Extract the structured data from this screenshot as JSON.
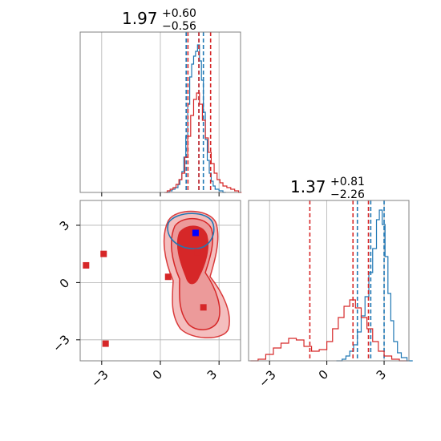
{
  "figure": {
    "type": "corner-plot",
    "colors": {
      "series_a": "#d62728",
      "series_b": "#1f77b4",
      "grid": "#b0b0b0",
      "frame": "#808080"
    }
  },
  "panels": {
    "p1_title": {
      "median": "1.97",
      "upper": "+0.60",
      "lower": "−0.56"
    },
    "p2_title": {
      "median": "1.37",
      "upper": "+0.81",
      "lower": "−2.26"
    }
  },
  "ticks": {
    "x": [
      "−3",
      "0",
      "3"
    ],
    "y": [
      "3",
      "0",
      "−3"
    ]
  },
  "chart_data": [
    {
      "type": "histogram",
      "panel": "marginal parameter 1",
      "xlim": [
        -4.1,
        4.1
      ],
      "grid": true,
      "series": [
        {
          "color": "#1f77b4",
          "quantiles": [
            1.32,
            1.97,
            2.2
          ],
          "bins": [
            [
              0.3,
              0.0
            ],
            [
              0.45,
              0.01
            ],
            [
              0.6,
              0.02
            ],
            [
              0.75,
              0.03
            ],
            [
              0.9,
              0.05
            ],
            [
              1.0,
              0.08
            ],
            [
              1.1,
              0.13
            ],
            [
              1.2,
              0.22
            ],
            [
              1.3,
              0.35
            ],
            [
              1.4,
              0.55
            ],
            [
              1.5,
              0.72
            ],
            [
              1.6,
              0.8
            ],
            [
              1.7,
              0.85
            ],
            [
              1.8,
              0.88
            ],
            [
              1.9,
              0.92
            ],
            [
              2.0,
              0.82
            ],
            [
              2.1,
              0.7
            ],
            [
              2.2,
              0.5
            ],
            [
              2.3,
              0.33
            ],
            [
              2.4,
              0.2
            ],
            [
              2.5,
              0.12
            ],
            [
              2.6,
              0.07
            ],
            [
              2.7,
              0.04
            ],
            [
              2.8,
              0.02
            ],
            [
              3.0,
              0.01
            ],
            [
              3.2,
              0.0
            ]
          ]
        },
        {
          "color": "#d62728",
          "quantiles": [
            1.41,
            1.97,
            2.57
          ],
          "bins": [
            [
              0.2,
              0.0
            ],
            [
              0.35,
              0.01
            ],
            [
              0.5,
              0.02
            ],
            [
              0.65,
              0.03
            ],
            [
              0.8,
              0.05
            ],
            [
              0.95,
              0.08
            ],
            [
              1.1,
              0.12
            ],
            [
              1.25,
              0.22
            ],
            [
              1.4,
              0.35
            ],
            [
              1.55,
              0.48
            ],
            [
              1.7,
              0.58
            ],
            [
              1.85,
              0.62
            ],
            [
              2.0,
              0.55
            ],
            [
              2.15,
              0.45
            ],
            [
              2.3,
              0.34
            ],
            [
              2.45,
              0.25
            ],
            [
              2.6,
              0.18
            ],
            [
              2.75,
              0.12
            ],
            [
              2.9,
              0.08
            ],
            [
              3.05,
              0.06
            ],
            [
              3.2,
              0.04
            ],
            [
              3.4,
              0.03
            ],
            [
              3.6,
              0.02
            ],
            [
              3.8,
              0.01
            ],
            [
              4.0,
              0.0
            ]
          ]
        }
      ]
    },
    {
      "type": "scatter",
      "panel": "joint parameter 1 vs parameter 2",
      "xlim": [
        -4.1,
        4.1
      ],
      "ylim": [
        -4.1,
        4.3
      ],
      "grid": true,
      "markers": [
        {
          "color": "#d62728",
          "shape": "square",
          "points": [
            [
              -3.8,
              0.9
            ],
            [
              -2.9,
              1.5
            ],
            [
              -2.8,
              -3.2
            ],
            [
              0.4,
              0.3
            ],
            [
              1.9,
              1.6
            ],
            [
              2.2,
              -1.3
            ]
          ]
        },
        {
          "color": "#0000ff",
          "shape": "square",
          "points": [
            [
              1.8,
              2.6
            ]
          ]
        }
      ]
    },
    {
      "type": "histogram",
      "panel": "marginal parameter 2",
      "xlim": [
        -4.1,
        4.3
      ],
      "grid": true,
      "series": [
        {
          "color": "#1f77b4",
          "quantiles": [
            1.6,
            2.3,
            3.0
          ],
          "bins": [
            [
              0.5,
              0.0
            ],
            [
              0.8,
              0.01
            ],
            [
              1.0,
              0.03
            ],
            [
              1.2,
              0.06
            ],
            [
              1.4,
              0.1
            ],
            [
              1.6,
              0.18
            ],
            [
              1.8,
              0.28
            ],
            [
              2.0,
              0.4
            ],
            [
              2.2,
              0.55
            ],
            [
              2.4,
              0.7
            ],
            [
              2.6,
              0.88
            ],
            [
              2.75,
              0.94
            ],
            [
              2.9,
              0.85
            ],
            [
              3.05,
              0.65
            ],
            [
              3.2,
              0.42
            ],
            [
              3.35,
              0.25
            ],
            [
              3.5,
              0.12
            ],
            [
              3.7,
              0.05
            ],
            [
              3.9,
              0.02
            ],
            [
              4.2,
              0.0
            ]
          ]
        },
        {
          "color": "#d62728",
          "quantiles": [
            -0.89,
            1.37,
            2.18
          ],
          "bins": [
            [
              -4.0,
              0.0
            ],
            [
              -3.6,
              0.01
            ],
            [
              -3.2,
              0.04
            ],
            [
              -2.8,
              0.08
            ],
            [
              -2.4,
              0.11
            ],
            [
              -2.0,
              0.14
            ],
            [
              -1.6,
              0.13
            ],
            [
              -1.2,
              0.09
            ],
            [
              -0.8,
              0.06
            ],
            [
              -0.4,
              0.07
            ],
            [
              0.0,
              0.12
            ],
            [
              0.3,
              0.2
            ],
            [
              0.6,
              0.27
            ],
            [
              0.9,
              0.34
            ],
            [
              1.2,
              0.38
            ],
            [
              1.5,
              0.33
            ],
            [
              1.8,
              0.27
            ],
            [
              2.1,
              0.2
            ],
            [
              2.4,
              0.12
            ],
            [
              2.7,
              0.06
            ],
            [
              3.0,
              0.03
            ],
            [
              3.4,
              0.01
            ],
            [
              3.8,
              0.0
            ]
          ]
        }
      ]
    }
  ]
}
